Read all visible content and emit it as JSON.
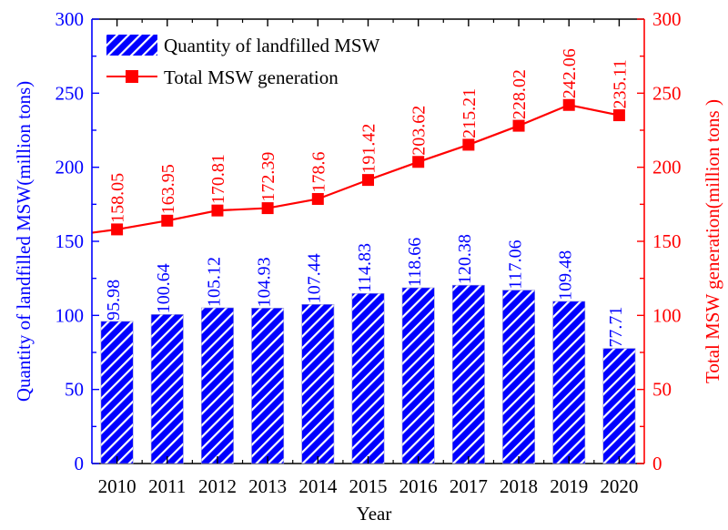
{
  "chart_data": {
    "type": "bar+line",
    "categories": [
      "2010",
      "2011",
      "2012",
      "2013",
      "2014",
      "2015",
      "2016",
      "2017",
      "2018",
      "2019",
      "2020"
    ],
    "series": [
      {
        "name": "Quantity of landfilled MSW",
        "type": "bar",
        "axis": "left",
        "color": "#0000ff",
        "pattern": "diagonal-hatch",
        "values": [
          95.98,
          100.64,
          105.12,
          104.93,
          107.44,
          114.83,
          118.66,
          120.38,
          117.06,
          109.48,
          77.71
        ],
        "labels": [
          "95.98",
          "100.64",
          "105.12",
          "104.93",
          "107.44",
          "114.83",
          "118.66",
          "120.38",
          "117.06",
          "109.48",
          "77.71"
        ]
      },
      {
        "name": "Total MSW generation",
        "type": "line",
        "marker": "square",
        "axis": "right",
        "color": "#ff0000",
        "values": [
          158.05,
          163.95,
          170.81,
          172.39,
          178.6,
          191.42,
          203.62,
          215.21,
          228.02,
          242.06,
          235.11
        ],
        "labels": [
          "158.05",
          "163.95",
          "170.81",
          "172.39",
          "178.6",
          "191.42",
          "203.62",
          "215.21",
          "228.02",
          "242.06",
          "235.11"
        ]
      }
    ],
    "title": "",
    "xlabel": "Year",
    "ylabel": "Quantity of landfilled MSW(million tons)",
    "y2label": "Total MSW generation(million tons )",
    "ylim": [
      0,
      300
    ],
    "y2lim": [
      0,
      300
    ],
    "yticks": [
      "0",
      "50",
      "100",
      "150",
      "200",
      "250",
      "300"
    ],
    "y2ticks": [
      "0",
      "50",
      "100",
      "150",
      "200",
      "250",
      "300"
    ],
    "left_axis_color": "#0000ff",
    "right_axis_color": "#ff0000",
    "grid": false,
    "legend_position": "top-left"
  }
}
